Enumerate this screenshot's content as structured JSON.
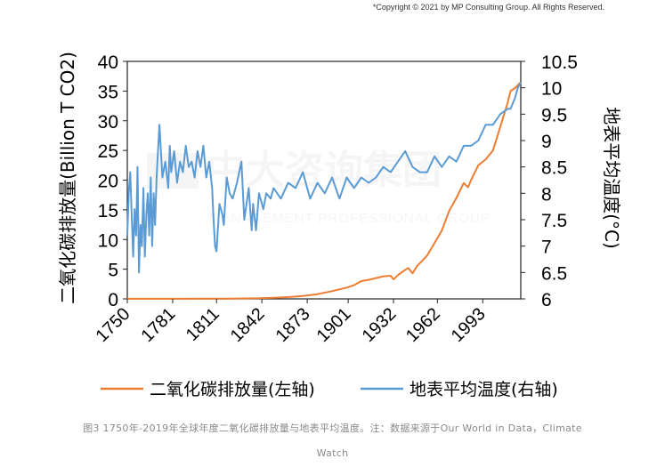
{
  "copyright": "*Copyright © 2021 by MP Consulting Group. All Rights Reserved.",
  "caption_line1": "图3  1750年-2019年全球年度二氧化碳排放量与地表平均温度。注：数据来源于Our World in Data，Climate",
  "caption_line2": "Watch",
  "chart_data": {
    "type": "line",
    "title": "",
    "xlabel": "",
    "ylabel_left": "二氧化碳排放量(Billion T CO2)",
    "ylabel_right": "地表平均温度(°C)",
    "x_ticks": [
      "1750",
      "1781",
      "1811",
      "1842",
      "1873",
      "1901",
      "1932",
      "1962",
      "1993"
    ],
    "xlim": [
      1750,
      2019
    ],
    "ylim_left": [
      0,
      40
    ],
    "ylim_right": [
      6,
      10.5
    ],
    "y_ticks_left": [
      "0",
      "5",
      "10",
      "15",
      "20",
      "25",
      "30",
      "35",
      "40"
    ],
    "y_ticks_right": [
      "6",
      "6.5",
      "7",
      "7.5",
      "8",
      "8.5",
      "9",
      "9.5",
      "10",
      "10.5"
    ],
    "grid": false,
    "legend_position": "bottom",
    "series": [
      {
        "name": "二氧化碳排放量(左轴)",
        "axis": "left",
        "color": "#ed7d31",
        "x": [
          1750,
          1780,
          1800,
          1810,
          1820,
          1830,
          1840,
          1850,
          1860,
          1870,
          1880,
          1890,
          1900,
          1905,
          1910,
          1915,
          1920,
          1925,
          1930,
          1932,
          1935,
          1940,
          1942,
          1945,
          1948,
          1950,
          1955,
          1960,
          1965,
          1970,
          1975,
          1980,
          1983,
          1985,
          1990,
          1995,
          2000,
          2005,
          2010,
          2012,
          2015,
          2019
        ],
        "values": [
          0.01,
          0.02,
          0.03,
          0.04,
          0.05,
          0.07,
          0.1,
          0.2,
          0.3,
          0.5,
          0.8,
          1.3,
          1.9,
          2.3,
          3.0,
          3.2,
          3.5,
          3.8,
          3.9,
          3.3,
          4.0,
          4.9,
          5.2,
          4.3,
          5.5,
          6.0,
          7.3,
          9.4,
          11.5,
          14.8,
          17.0,
          19.5,
          18.8,
          20.0,
          22.5,
          23.5,
          25.0,
          29.0,
          33.0,
          35.0,
          35.5,
          36.5
        ]
      },
      {
        "name": "地表平均温度(右轴)",
        "axis": "right",
        "color": "#5b9bd5",
        "x": [
          1750,
          1751,
          1752,
          1753,
          1754,
          1755,
          1756,
          1757,
          1758,
          1759,
          1760,
          1761,
          1762,
          1763,
          1764,
          1765,
          1766,
          1767,
          1768,
          1769,
          1770,
          1772,
          1774,
          1776,
          1778,
          1779,
          1780,
          1782,
          1784,
          1786,
          1788,
          1790,
          1792,
          1794,
          1796,
          1798,
          1800,
          1802,
          1804,
          1806,
          1808,
          1809,
          1810,
          1811,
          1813,
          1815,
          1816,
          1818,
          1820,
          1822,
          1825,
          1828,
          1830,
          1833,
          1835,
          1836,
          1838,
          1840,
          1843,
          1845,
          1848,
          1850,
          1855,
          1860,
          1865,
          1870,
          1875,
          1880,
          1885,
          1890,
          1895,
          1900,
          1905,
          1910,
          1915,
          1920,
          1925,
          1930,
          1935,
          1940,
          1945,
          1950,
          1955,
          1960,
          1965,
          1970,
          1975,
          1980,
          1985,
          1990,
          1995,
          2000,
          2005,
          2010,
          2012,
          2015,
          2017,
          2019
        ],
        "values": [
          7.2,
          8.0,
          8.4,
          7.6,
          6.8,
          7.7,
          7.2,
          8.5,
          6.5,
          7.4,
          7.0,
          8.1,
          6.8,
          7.6,
          8.0,
          7.2,
          8.3,
          7.0,
          8.0,
          7.4,
          8.3,
          9.3,
          8.3,
          8.6,
          8.1,
          8.9,
          8.4,
          8.8,
          8.2,
          8.6,
          8.4,
          8.9,
          8.5,
          8.6,
          8.3,
          8.8,
          8.5,
          8.9,
          8.3,
          8.6,
          8.1,
          7.5,
          7.0,
          6.9,
          7.8,
          7.6,
          7.4,
          8.3,
          8.0,
          7.9,
          8.2,
          8.6,
          7.5,
          8.1,
          7.3,
          7.8,
          7.3,
          8.0,
          7.7,
          8.0,
          7.9,
          8.1,
          7.9,
          8.2,
          8.1,
          8.4,
          7.9,
          8.2,
          8.0,
          8.3,
          7.9,
          8.3,
          8.1,
          8.3,
          8.2,
          8.3,
          8.5,
          8.4,
          8.6,
          8.8,
          8.5,
          8.4,
          8.4,
          8.7,
          8.5,
          8.7,
          8.6,
          8.9,
          8.9,
          9.0,
          9.3,
          9.3,
          9.5,
          9.6,
          9.6,
          9.8,
          10.0,
          10.1
        ]
      }
    ]
  }
}
